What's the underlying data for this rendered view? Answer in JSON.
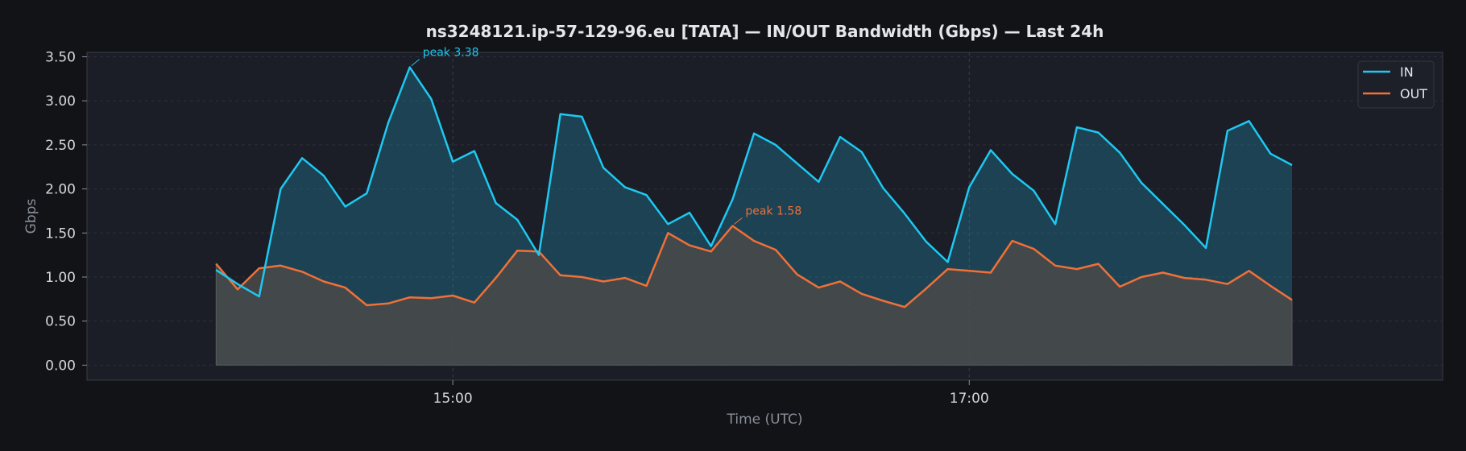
{
  "chart_data": {
    "type": "area",
    "title": "ns3248121.ip-57-129-96.eu [TATA] — IN/OUT Bandwidth (Gbps) — Last 24h",
    "xlabel": "Time (UTC)",
    "ylabel": "Gbps",
    "ylim": [
      -0.17,
      3.55
    ],
    "yticks": [
      0.0,
      0.5,
      1.0,
      1.5,
      2.0,
      2.5,
      3.0,
      3.5
    ],
    "ytick_labels": [
      "0.00",
      "0.50",
      "1.00",
      "1.50",
      "2.00",
      "2.50",
      "3.00",
      "3.50"
    ],
    "x_start": "14:05",
    "x_step_minutes": 5,
    "x_axis_range": [
      "13:35",
      "18:50"
    ],
    "xticks": [
      "15:00",
      "17:00"
    ],
    "grid": true,
    "legend_position": "top-right",
    "colors": {
      "in": "#1ec8f0",
      "out": "#f07038",
      "background": "#111317",
      "plot_bg": "#1b1d27"
    },
    "series": [
      {
        "name": "IN",
        "values": [
          1.08,
          0.92,
          0.78,
          2.0,
          2.35,
          2.15,
          1.8,
          1.95,
          2.75,
          3.38,
          3.02,
          2.31,
          2.43,
          1.84,
          1.65,
          1.25,
          2.85,
          2.82,
          2.24,
          2.02,
          1.93,
          1.6,
          1.73,
          1.35,
          1.88,
          2.63,
          2.5,
          2.29,
          2.08,
          2.59,
          2.42,
          2.01,
          1.72,
          1.4,
          1.17,
          2.02,
          2.44,
          2.17,
          1.98,
          1.6,
          2.7,
          2.64,
          2.41,
          2.07,
          1.83,
          1.59,
          1.33,
          2.66,
          2.77,
          2.4,
          2.27
        ]
      },
      {
        "name": "OUT",
        "values": [
          1.15,
          0.86,
          1.1,
          1.13,
          1.06,
          0.95,
          0.88,
          0.68,
          0.7,
          0.77,
          0.76,
          0.79,
          0.71,
          0.99,
          1.3,
          1.29,
          1.02,
          1.0,
          0.95,
          0.99,
          0.9,
          1.5,
          1.36,
          1.29,
          1.58,
          1.41,
          1.31,
          1.03,
          0.88,
          0.95,
          0.81,
          0.73,
          0.66,
          0.87,
          1.09,
          1.07,
          1.05,
          1.41,
          1.32,
          1.13,
          1.09,
          1.15,
          0.89,
          1.0,
          1.05,
          0.99,
          0.97,
          0.92,
          1.07,
          0.9,
          0.74
        ]
      }
    ],
    "annotations": [
      {
        "series": "IN",
        "index": 9,
        "text": "peak 3.38"
      },
      {
        "series": "OUT",
        "index": 24,
        "text": "peak 1.58"
      }
    ]
  }
}
